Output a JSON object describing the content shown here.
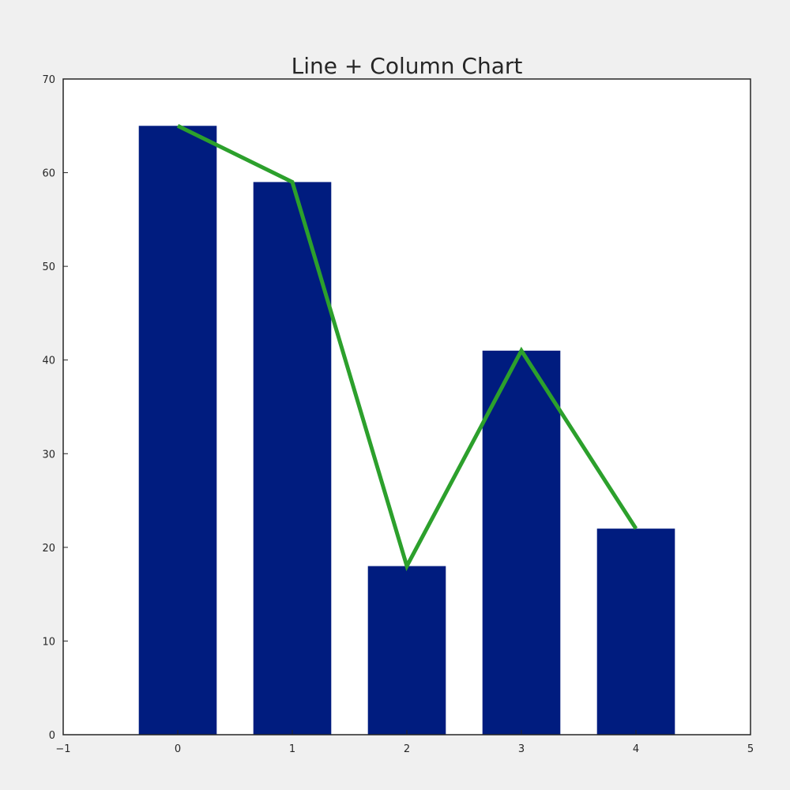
{
  "chart_data": {
    "type": "bar",
    "title": "Line + Column Chart",
    "xlabel": "",
    "ylabel": "",
    "x": [
      0,
      1,
      2,
      3,
      4
    ],
    "series": [
      {
        "kind": "bar",
        "values": [
          65,
          59,
          18,
          41,
          22
        ]
      },
      {
        "kind": "line",
        "values": [
          65,
          59,
          18,
          41,
          22
        ]
      }
    ],
    "xlim": [
      -1,
      5
    ],
    "ylim": [
      0,
      70
    ],
    "xticks": [
      "−1",
      "0",
      "1",
      "2",
      "3",
      "4",
      "5"
    ],
    "yticks": [
      "0",
      "10",
      "20",
      "30",
      "40",
      "50",
      "60",
      "70"
    ],
    "grid": false,
    "colors": {
      "bar": "#001c7f",
      "line": "#2ca02c",
      "axes_background": "#ffffff",
      "figure_background": "#f0f0f0",
      "spine": "#262626"
    }
  }
}
